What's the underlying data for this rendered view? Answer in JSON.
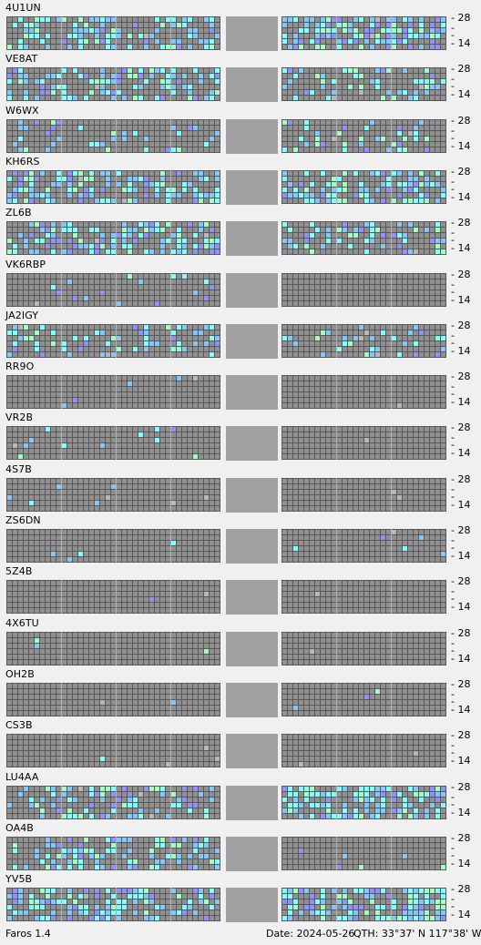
{
  "app": {
    "version_label": "Faros 1.4"
  },
  "status": {
    "date": "Date: 2024-05-26",
    "qth": "QTH: 33°37' N  117°38' W"
  },
  "axis": {
    "top_label": "28",
    "bottom_label": "14",
    "tick": "-"
  },
  "colors": {
    "grid_bg": "#585858",
    "cell_empty": "#909090",
    "gap": "#a0a0a0",
    "cyan": "#80ffff",
    "sky": "#80c8ff",
    "mint": "#a0ffc0",
    "violet": "#9090ff",
    "light_gray": "#b8b8b8"
  },
  "beacons": [
    {
      "callsign": "4U1UN"
    },
    {
      "callsign": "VE8AT"
    },
    {
      "callsign": "W6WX"
    },
    {
      "callsign": "KH6RS"
    },
    {
      "callsign": "ZL6B"
    },
    {
      "callsign": "VK6RBP"
    },
    {
      "callsign": "JA2IGY"
    },
    {
      "callsign": "RR9O"
    },
    {
      "callsign": "VR2B"
    },
    {
      "callsign": "4S7B"
    },
    {
      "callsign": "ZS6DN"
    },
    {
      "callsign": "5Z4B"
    },
    {
      "callsign": "4X6TU"
    },
    {
      "callsign": "OH2B"
    },
    {
      "callsign": "CS3B"
    },
    {
      "callsign": "LU4AA"
    },
    {
      "callsign": "OA4B"
    },
    {
      "callsign": "YV5B"
    }
  ]
}
